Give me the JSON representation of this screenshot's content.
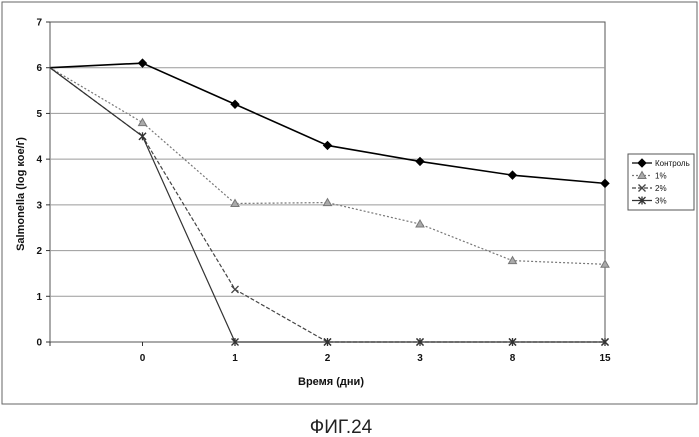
{
  "chart_data": {
    "type": "line",
    "title": "",
    "caption": "ФИГ.24",
    "xlabel": "Время (дни)",
    "ylabel": "Salmonella (log кое/г)",
    "categories": [
      "",
      "0",
      "1",
      "2",
      "3",
      "8",
      "15"
    ],
    "ylim": [
      0,
      7
    ],
    "yticks": [
      "0",
      "1",
      "2",
      "3",
      "4",
      "5",
      "6",
      "7"
    ],
    "grid": true,
    "legend_position": "right",
    "series": [
      {
        "name": "Контроль",
        "color": "#000000",
        "marker": "diamond",
        "dash": "solid",
        "values": [
          6.0,
          6.1,
          5.2,
          4.3,
          3.95,
          3.65,
          3.47
        ]
      },
      {
        "name": "1%",
        "color": "#777777",
        "marker": "triangle",
        "dash": "dotted",
        "values": [
          6.0,
          4.8,
          3.03,
          3.05,
          2.58,
          1.78,
          1.7
        ]
      },
      {
        "name": "2%",
        "color": "#444444",
        "marker": "x",
        "dash": "dashed",
        "values": [
          6.0,
          4.5,
          1.15,
          0,
          0,
          0,
          0
        ]
      },
      {
        "name": "3%",
        "color": "#333333",
        "marker": "star",
        "dash": "solid",
        "values": [
          6.0,
          4.5,
          0,
          0,
          0,
          0,
          0
        ]
      }
    ]
  }
}
